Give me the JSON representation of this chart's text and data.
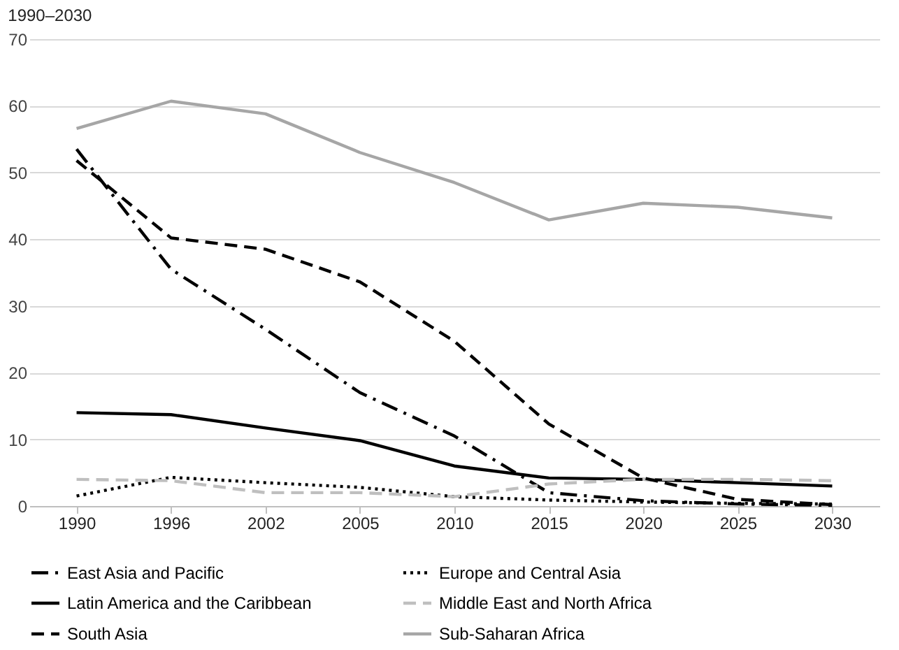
{
  "chart_data": {
    "type": "line",
    "title": "1990–2030",
    "categories": [
      "1990",
      "1996",
      "2002",
      "2005",
      "2010",
      "2015",
      "2020",
      "2025",
      "2030"
    ],
    "ylim": [
      0,
      70
    ],
    "yticks": [
      0,
      10,
      20,
      30,
      40,
      50,
      60,
      70
    ],
    "grid": "y",
    "legend": "bottom",
    "marker": "none",
    "series": [
      {
        "name": "East Asia and Pacific",
        "color": "#000000",
        "line_style": "dashdot",
        "values": [
          53.5,
          35.5,
          26.5,
          17,
          10.5,
          2,
          0.8,
          0.3,
          0.1
        ]
      },
      {
        "name": "Europe and Central Asia",
        "color": "#000000",
        "line_style": "dotted",
        "values": [
          1.5,
          4.3,
          3.5,
          2.8,
          1.4,
          0.9,
          0.6,
          0.4,
          0.3
        ]
      },
      {
        "name": "Latin America and the Caribbean",
        "color": "#000000",
        "line_style": "solid",
        "values": [
          14,
          13.7,
          11.7,
          9.8,
          6,
          4.2,
          4,
          3.5,
          3
        ]
      },
      {
        "name": "Middle East and North Africa",
        "color": "#bfbfbf",
        "line_style": "dashed",
        "values": [
          4,
          3.8,
          2,
          2,
          1.4,
          3.3,
          4,
          4,
          3.8
        ]
      },
      {
        "name": "South Asia",
        "color": "#000000",
        "line_style": "dashed",
        "values": [
          51.8,
          40.2,
          38.5,
          33.6,
          24.7,
          12.3,
          4.2,
          1.0,
          0.2
        ]
      },
      {
        "name": "Sub-Saharan Africa",
        "color": "#a6a6a6",
        "line_style": "solid",
        "values": [
          56.6,
          60.7,
          58.8,
          53,
          48.5,
          42.9,
          45.4,
          44.8,
          43.2
        ]
      }
    ]
  }
}
